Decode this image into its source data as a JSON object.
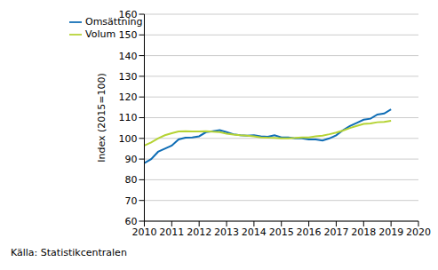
{
  "chart_data": {
    "type": "line",
    "y_label": "Index (2015=100)",
    "source": "Källa: Statistikcentralen",
    "x": [
      2010.0,
      2010.25,
      2010.5,
      2010.75,
      2011.0,
      2011.25,
      2011.5,
      2011.75,
      2012.0,
      2012.25,
      2012.5,
      2012.75,
      2013.0,
      2013.25,
      2013.5,
      2013.75,
      2014.0,
      2014.25,
      2014.5,
      2014.75,
      2015.0,
      2015.25,
      2015.5,
      2015.75,
      2016.0,
      2016.25,
      2016.5,
      2016.75,
      2017.0,
      2017.25,
      2017.5,
      2017.75,
      2018.0,
      2018.25,
      2018.5,
      2018.75,
      2019.0
    ],
    "series": [
      {
        "name": "Omsättning",
        "color": "#0f6db5",
        "values": [
          88,
          90,
          93.5,
          95,
          96.5,
          99.5,
          100.3,
          100.5,
          101,
          103,
          103.5,
          104,
          103,
          102,
          101.5,
          101.3,
          101.5,
          101,
          100.8,
          101.5,
          100.5,
          100.5,
          100,
          100,
          99.5,
          99.5,
          99,
          100,
          101.5,
          104,
          106,
          107.5,
          109,
          109.5,
          111.5,
          112,
          114
        ]
      },
      {
        "name": "Volum",
        "color": "#b5d334",
        "values": [
          96.5,
          98,
          100,
          101.5,
          102.5,
          103.3,
          103.5,
          103.3,
          103.3,
          103.5,
          103.2,
          103,
          102.3,
          101.8,
          101.5,
          101.3,
          101,
          100.5,
          100.3,
          100.2,
          100,
          100,
          100.2,
          100.5,
          100.5,
          101,
          101.3,
          102,
          102.8,
          103.8,
          105,
          106,
          107,
          107.2,
          107.8,
          108,
          108.5
        ]
      }
    ],
    "xlim": [
      2010,
      2020
    ],
    "xticks": [
      2010,
      2011,
      2012,
      2013,
      2014,
      2015,
      2016,
      2017,
      2018,
      2019,
      2020
    ],
    "ylim": [
      60,
      160
    ],
    "yticks": [
      60,
      70,
      80,
      90,
      100,
      110,
      120,
      130,
      140,
      150,
      160
    ],
    "grid": true,
    "legend": "top-left"
  }
}
